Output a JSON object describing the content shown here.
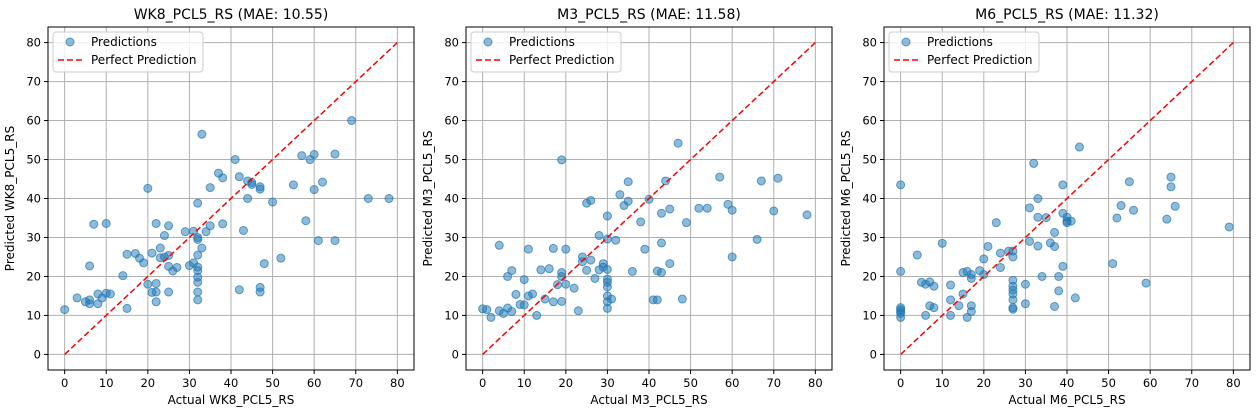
{
  "chart_data": [
    {
      "type": "scatter",
      "title": "WK8_PCL5_RS (MAE: 10.55)",
      "xlabel": "Actual WK8_PCL5_RS",
      "ylabel": "Predicted WK8_PCL5_RS",
      "xlim": [
        -4,
        84
      ],
      "ylim": [
        -4,
        84
      ],
      "xticks": [
        0,
        10,
        20,
        30,
        40,
        50,
        60,
        70,
        80
      ],
      "yticks": [
        0,
        10,
        20,
        30,
        40,
        50,
        60,
        70,
        80
      ],
      "grid": true,
      "legend_position": "top-left",
      "series": [
        {
          "name": "Predictions",
          "color": "#1f77b4",
          "points": [
            [
              0,
              11.5
            ],
            [
              3,
              14.5
            ],
            [
              5,
              13.5
            ],
            [
              6,
              14
            ],
            [
              6,
              22.7
            ],
            [
              6,
              13
            ],
            [
              7,
              33.4
            ],
            [
              8,
              13
            ],
            [
              8,
              15.5
            ],
            [
              9,
              14.5
            ],
            [
              10,
              33.6
            ],
            [
              10,
              15.7
            ],
            [
              11,
              15.5
            ],
            [
              14,
              20.2
            ],
            [
              15,
              11.8
            ],
            [
              15,
              25.7
            ],
            [
              17,
              25.9
            ],
            [
              18,
              24.7
            ],
            [
              19,
              23.5
            ],
            [
              20,
              42.6
            ],
            [
              20,
              18
            ],
            [
              21,
              26
            ],
            [
              21,
              15.9
            ],
            [
              22,
              33.6
            ],
            [
              22,
              13.5
            ],
            [
              22,
              18.2
            ],
            [
              22,
              16
            ],
            [
              23,
              27.3
            ],
            [
              23,
              24.8
            ],
            [
              24,
              25
            ],
            [
              24,
              30.5
            ],
            [
              25,
              25.4
            ],
            [
              25,
              33
            ],
            [
              25,
              22.6
            ],
            [
              25,
              16
            ],
            [
              26,
              21.4
            ],
            [
              27,
              22.3
            ],
            [
              29,
              31.5
            ],
            [
              30,
              22.8
            ],
            [
              31,
              23.5
            ],
            [
              31,
              31.6
            ],
            [
              32,
              38.8
            ],
            [
              32,
              30
            ],
            [
              32,
              29.5
            ],
            [
              32,
              25.5
            ],
            [
              32,
              22.4
            ],
            [
              32,
              21.5
            ],
            [
              32,
              19.8
            ],
            [
              32,
              18.5
            ],
            [
              32,
              16
            ],
            [
              32,
              14
            ],
            [
              33,
              56.5
            ],
            [
              33,
              27.3
            ],
            [
              34,
              31.5
            ],
            [
              35,
              33
            ],
            [
              35,
              42.8
            ],
            [
              37,
              46.5
            ],
            [
              38,
              45.3
            ],
            [
              38,
              33.5
            ],
            [
              41,
              50
            ],
            [
              42,
              45.6
            ],
            [
              42,
              16.6
            ],
            [
              43,
              31.8
            ],
            [
              44,
              40
            ],
            [
              44,
              44.5
            ],
            [
              45,
              43.6
            ],
            [
              45,
              44.1
            ],
            [
              47,
              43
            ],
            [
              47,
              42.4
            ],
            [
              47,
              16
            ],
            [
              47,
              17.2
            ],
            [
              48,
              23.3
            ],
            [
              50,
              39.1
            ],
            [
              52,
              24.7
            ],
            [
              55,
              43.5
            ],
            [
              57,
              51
            ],
            [
              58,
              34.3
            ],
            [
              59,
              50
            ],
            [
              60,
              51.3
            ],
            [
              60,
              42.3
            ],
            [
              61,
              29.2
            ],
            [
              62,
              44.2
            ],
            [
              65,
              29.2
            ],
            [
              65,
              51.4
            ],
            [
              69,
              60
            ],
            [
              73,
              40
            ],
            [
              78,
              40
            ]
          ]
        },
        {
          "name": "Perfect Prediction",
          "color": "#ff0000",
          "points": [
            [
              0,
              0
            ],
            [
              80,
              80
            ]
          ]
        }
      ]
    },
    {
      "type": "scatter",
      "title": "M3_PCL5_RS (MAE: 11.58)",
      "xlabel": "Actual M3_PCL5_RS",
      "ylabel": "Predicted M3_PCL5_RS",
      "xlim": [
        -4,
        84
      ],
      "ylim": [
        -4,
        84
      ],
      "xticks": [
        0,
        10,
        20,
        30,
        40,
        50,
        60,
        70,
        80
      ],
      "yticks": [
        0,
        10,
        20,
        30,
        40,
        50,
        60,
        70,
        80
      ],
      "grid": true,
      "legend_position": "top-left",
      "series": [
        {
          "name": "Predictions",
          "color": "#1f77b4",
          "points": [
            [
              0,
              11.7
            ],
            [
              1,
              11.5
            ],
            [
              2,
              9.5
            ],
            [
              4,
              28
            ],
            [
              4,
              11.2
            ],
            [
              5,
              10.5
            ],
            [
              6,
              20
            ],
            [
              6,
              11.9
            ],
            [
              7,
              21.5
            ],
            [
              7,
              11
            ],
            [
              8,
              15.4
            ],
            [
              9,
              12.8
            ],
            [
              10,
              12.7
            ],
            [
              10,
              19.2
            ],
            [
              11,
              27
            ],
            [
              11,
              15
            ],
            [
              12,
              15.5
            ],
            [
              13,
              10
            ],
            [
              14,
              21.7
            ],
            [
              15,
              14.2
            ],
            [
              16,
              22
            ],
            [
              17,
              27.2
            ],
            [
              17,
              13.5
            ],
            [
              18,
              17.9
            ],
            [
              19,
              49.9
            ],
            [
              19,
              21
            ],
            [
              19,
              20
            ],
            [
              19,
              13.6
            ],
            [
              20,
              27
            ],
            [
              20,
              18
            ],
            [
              22,
              17
            ],
            [
              23,
              11.2
            ],
            [
              24,
              23.8
            ],
            [
              24,
              25
            ],
            [
              25,
              38.8
            ],
            [
              25,
              21.6
            ],
            [
              26,
              39.5
            ],
            [
              26,
              24.2
            ],
            [
              27,
              19.5
            ],
            [
              28,
              30.5
            ],
            [
              28,
              21.7
            ],
            [
              29,
              23.3
            ],
            [
              29,
              22.4
            ],
            [
              30,
              35.5
            ],
            [
              30,
              29.6
            ],
            [
              30,
              21.8
            ],
            [
              30,
              19.3
            ],
            [
              30,
              18.5
            ],
            [
              30,
              17.3
            ],
            [
              30,
              15
            ],
            [
              30,
              13.5
            ],
            [
              30,
              11.8
            ],
            [
              31,
              14.2
            ],
            [
              32,
              29.3
            ],
            [
              33,
              41
            ],
            [
              34,
              38.2
            ],
            [
              35,
              44.3
            ],
            [
              35,
              39.3
            ],
            [
              36,
              21.3
            ],
            [
              38,
              34
            ],
            [
              39,
              27
            ],
            [
              40,
              39.8
            ],
            [
              41,
              14
            ],
            [
              42,
              14
            ],
            [
              42,
              21.4
            ],
            [
              43,
              36.2
            ],
            [
              43,
              28.6
            ],
            [
              43,
              21
            ],
            [
              44,
              44.5
            ],
            [
              45,
              37.3
            ],
            [
              45,
              23.3
            ],
            [
              47,
              54.2
            ],
            [
              48,
              14.2
            ],
            [
              49,
              33.8
            ],
            [
              52,
              37.5
            ],
            [
              54,
              37.5
            ],
            [
              57,
              45.5
            ],
            [
              59,
              38.5
            ],
            [
              60,
              37
            ],
            [
              60,
              25
            ],
            [
              66,
              29.5
            ],
            [
              67,
              44.5
            ],
            [
              70,
              36.8
            ],
            [
              71,
              45.2
            ],
            [
              78,
              35.8
            ]
          ]
        },
        {
          "name": "Perfect Prediction",
          "color": "#ff0000",
          "points": [
            [
              0,
              0
            ],
            [
              80,
              80
            ]
          ]
        }
      ]
    },
    {
      "type": "scatter",
      "title": "M6_PCL5_RS (MAE: 11.32)",
      "xlabel": "Actual M6_PCL5_RS",
      "ylabel": "Predicted M6_PCL5_RS",
      "xlim": [
        -4,
        84
      ],
      "ylim": [
        -4,
        84
      ],
      "xticks": [
        0,
        10,
        20,
        30,
        40,
        50,
        60,
        70,
        80
      ],
      "yticks": [
        0,
        10,
        20,
        30,
        40,
        50,
        60,
        70,
        80
      ],
      "grid": true,
      "legend_position": "top-left",
      "series": [
        {
          "name": "Predictions",
          "color": "#1f77b4",
          "points": [
            [
              0,
              43.5
            ],
            [
              0,
              21.3
            ],
            [
              0,
              12
            ],
            [
              0,
              11.5
            ],
            [
              0,
              11
            ],
            [
              0,
              10.5
            ],
            [
              0,
              9.5
            ],
            [
              4,
              25.5
            ],
            [
              5,
              18.5
            ],
            [
              6,
              18
            ],
            [
              6,
              10
            ],
            [
              7,
              18.6
            ],
            [
              7,
              12.5
            ],
            [
              8,
              17.5
            ],
            [
              8,
              12
            ],
            [
              10,
              28.5
            ],
            [
              12,
              17.8
            ],
            [
              12,
              14
            ],
            [
              12,
              10
            ],
            [
              14,
              12.5
            ],
            [
              15,
              21
            ],
            [
              15,
              15.5
            ],
            [
              16,
              21.3
            ],
            [
              16,
              9.5
            ],
            [
              17,
              20.5
            ],
            [
              17,
              19.5
            ],
            [
              17,
              11
            ],
            [
              17,
              12.5
            ],
            [
              19,
              21.5
            ],
            [
              20,
              24.5
            ],
            [
              20,
              20.5
            ],
            [
              21,
              27.7
            ],
            [
              23,
              33.8
            ],
            [
              24,
              26
            ],
            [
              24,
              22.3
            ],
            [
              26,
              26.5
            ],
            [
              27,
              26.5
            ],
            [
              27,
              25
            ],
            [
              27,
              19
            ],
            [
              27,
              17.5
            ],
            [
              27,
              16.5
            ],
            [
              27,
              15.5
            ],
            [
              27,
              14
            ],
            [
              27,
              12
            ],
            [
              27,
              11.6
            ],
            [
              30,
              18
            ],
            [
              30,
              13
            ],
            [
              31,
              37.6
            ],
            [
              31,
              29
            ],
            [
              32,
              49
            ],
            [
              33,
              40
            ],
            [
              33,
              35.2
            ],
            [
              33,
              27.8
            ],
            [
              34,
              20
            ],
            [
              35,
              35.1
            ],
            [
              36,
              28.6
            ],
            [
              37,
              12.3
            ],
            [
              37,
              27.7
            ],
            [
              37,
              31.3
            ],
            [
              38,
              16.3
            ],
            [
              38,
              20
            ],
            [
              39,
              22.6
            ],
            [
              39,
              43.5
            ],
            [
              39,
              36.2
            ],
            [
              40,
              35.2
            ],
            [
              40,
              33.8
            ],
            [
              40,
              34.2
            ],
            [
              41,
              34.2
            ],
            [
              42,
              14.5
            ],
            [
              43,
              53.2
            ],
            [
              51,
              23.3
            ],
            [
              52,
              35
            ],
            [
              53,
              38.2
            ],
            [
              55,
              44.3
            ],
            [
              56,
              37
            ],
            [
              59,
              18.3
            ],
            [
              64,
              34.7
            ],
            [
              65,
              45.5
            ],
            [
              65,
              43
            ],
            [
              66,
              38
            ],
            [
              79,
              32.7
            ]
          ]
        },
        {
          "name": "Perfect Prediction",
          "color": "#ff0000",
          "points": [
            [
              0,
              0
            ],
            [
              80,
              80
            ]
          ]
        }
      ]
    }
  ]
}
